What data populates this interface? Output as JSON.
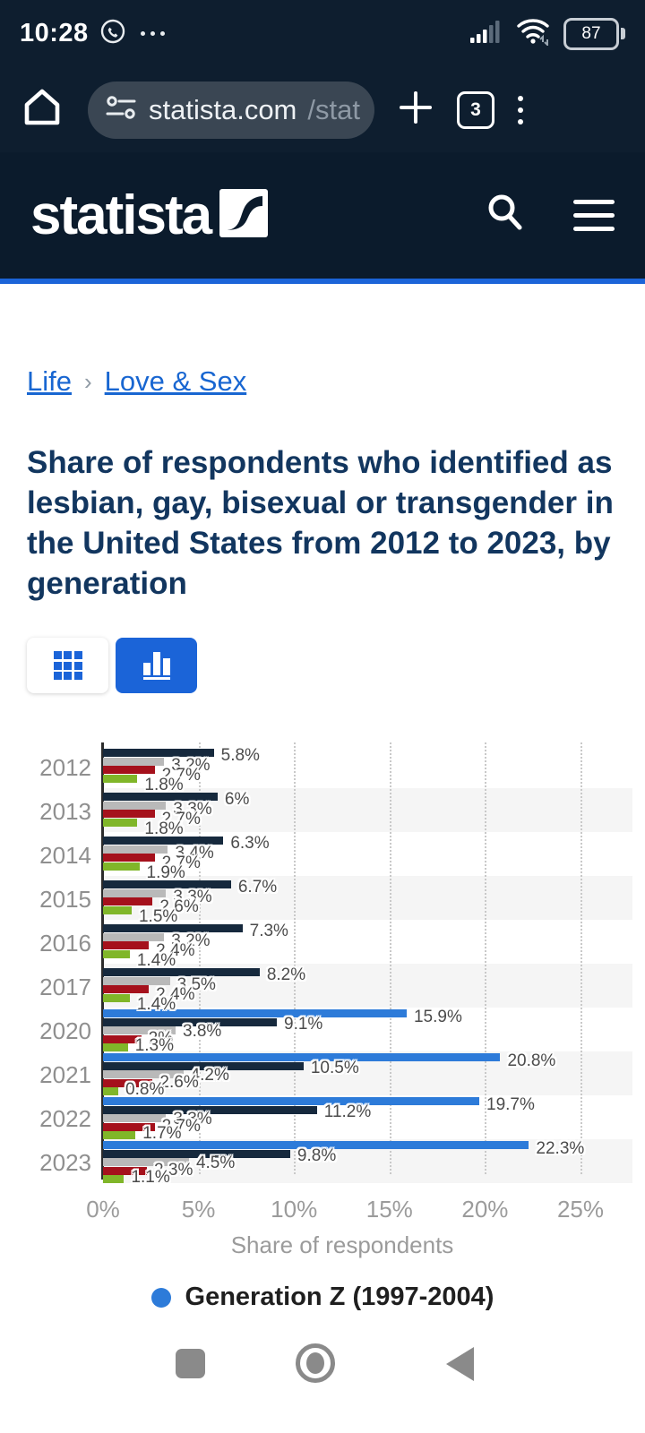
{
  "status_bar": {
    "time": "10:28",
    "battery_level": "87"
  },
  "browser": {
    "url_host": "statista.com",
    "url_path": "/stat",
    "tab_count": "3"
  },
  "brand": {
    "logo_text": "statista",
    "accent_blue": "#1b64d8",
    "header_bg": "#0b1b2c"
  },
  "breadcrumb": {
    "separator": "›",
    "items": [
      {
        "label": "Life"
      },
      {
        "label": "Love & Sex"
      }
    ]
  },
  "page": {
    "title": "Share of respondents who identified as lesbian, gay, bisexual or transgender in the United States from 2012 to 2023, by generation"
  },
  "view_toggle": {
    "table_view": "table-view",
    "chart_view": "chart-view (active)"
  },
  "chart_data": {
    "type": "bar",
    "orientation": "horizontal",
    "categories": [
      "2012",
      "2013",
      "2014",
      "2015",
      "2016",
      "2017",
      "2020",
      "2021",
      "2022",
      "2023"
    ],
    "series": [
      {
        "name": "Generation Z (1997-2004)",
        "color": "#2d7bd9",
        "values": [
          null,
          null,
          null,
          null,
          null,
          null,
          15.9,
          20.8,
          19.7,
          22.3
        ],
        "labels": [
          "",
          "",
          "",
          "",
          "",
          "",
          "15.9%",
          "20.8%",
          "19.7%",
          "22.3%"
        ]
      },
      {
        "name": "dark-blue-series",
        "color": "#16293d",
        "values": [
          5.8,
          6,
          6.3,
          6.7,
          7.3,
          8.2,
          9.1,
          10.5,
          11.2,
          9.8
        ],
        "labels": [
          "5.8%",
          "6%",
          "6.3%",
          "6.7%",
          "7.3%",
          "8.2%",
          "9.1%",
          "10.5%",
          "11.2%",
          "9.8%"
        ]
      },
      {
        "name": "gray-series",
        "color": "#b9b9b9",
        "values": [
          3.2,
          3.3,
          3.4,
          3.3,
          3.2,
          3.5,
          3.8,
          4.2,
          3.3,
          4.5
        ],
        "labels": [
          "3.2%",
          "3.3%",
          "3.4%",
          "3.3%",
          "3.2%",
          "3.5%",
          "3.8%",
          "4.2%",
          "3.3%",
          "4.5%"
        ]
      },
      {
        "name": "dark-red-series",
        "color": "#a5111c",
        "values": [
          2.7,
          2.7,
          2.7,
          2.6,
          2.4,
          2.4,
          2,
          2.6,
          2.7,
          2.3
        ],
        "labels": [
          "2.7%",
          "2.7%",
          "2.7%",
          "2.6%",
          "2.4%",
          "2.4%",
          "2%",
          "2.6%",
          "2.7%",
          "2.3%"
        ]
      },
      {
        "name": "green-series",
        "color": "#80b629",
        "values": [
          1.8,
          1.8,
          1.9,
          1.5,
          1.4,
          1.4,
          1.3,
          0.8,
          1.7,
          1.1
        ],
        "labels": [
          "1.8%",
          "1.8%",
          "1.9%",
          "1.5%",
          "1.4%",
          "1.4%",
          "1.3%",
          "0.8%",
          "1.7%",
          "1.1%"
        ]
      }
    ],
    "xlabel": "Share of respondents",
    "xticks": [
      "0%",
      "5%",
      "10%",
      "15%",
      "20%",
      "25%"
    ],
    "xlim": [
      0,
      25
    ],
    "grid": true,
    "zebra_rows": true,
    "legend_position": "bottom",
    "legend_visible_entries": [
      "Generation Z (1997-2004)"
    ]
  },
  "legend": {
    "label": "Generation Z (1997-2004)",
    "color": "#2d7bd9"
  }
}
